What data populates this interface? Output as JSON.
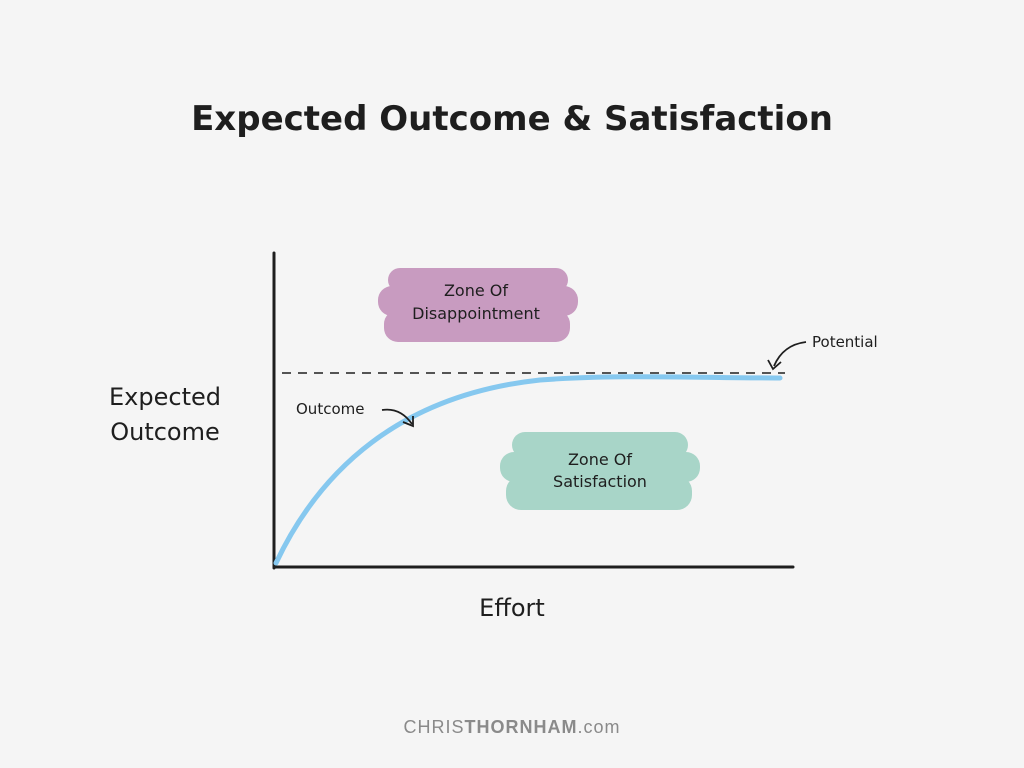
{
  "title": "Expected Outcome & Satisfaction",
  "axes": {
    "y_label": [
      "Expected",
      "Outcome"
    ],
    "x_label": "Effort"
  },
  "zones": [
    {
      "label": [
        "Zone Of",
        "Disappointment"
      ]
    },
    {
      "label": [
        "Zone Of",
        "Satisfaction"
      ]
    }
  ],
  "annotations": {
    "potential": "Potential",
    "outcome": "Outcome"
  },
  "footer": {
    "name": "CHRIS",
    "brand": "THORNHAM",
    "suffix": ".com"
  }
}
